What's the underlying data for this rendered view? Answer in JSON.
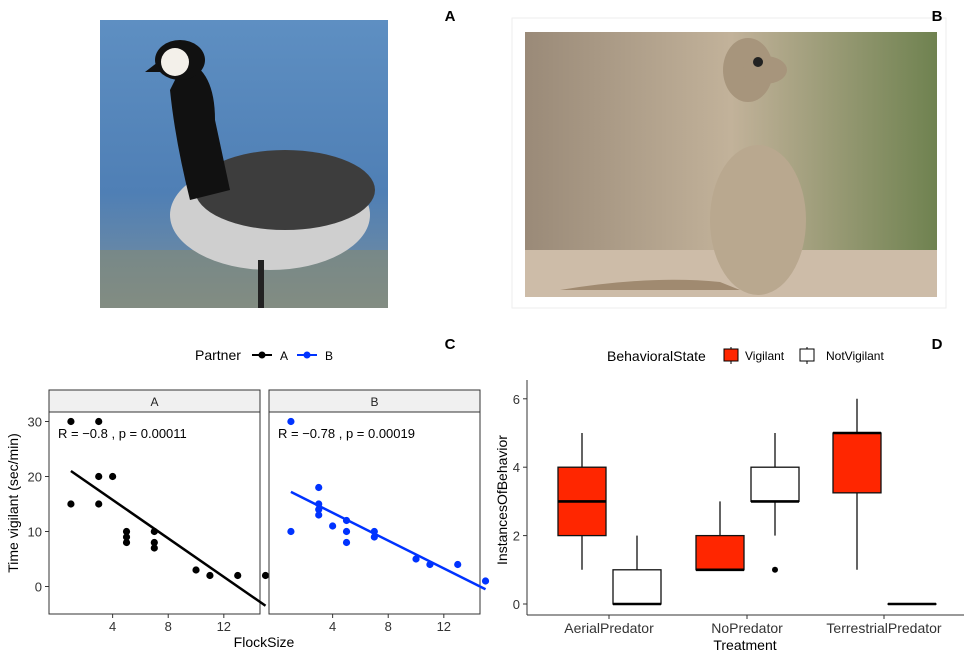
{
  "panel_labels": [
    "A",
    "B",
    "C",
    "D"
  ],
  "photos": {
    "a": "barnacle-goose-photo",
    "b": "meerkat-photo"
  },
  "colors": {
    "partner_a": "#000000",
    "partner_b": "#0033ff",
    "vigilant": "#ff2600",
    "not_vigilant": "#ffffff",
    "strip": "#f0f0f0"
  },
  "chart_data": [
    {
      "type": "scatter",
      "title": "",
      "xlabel": "FlockSize",
      "ylabel": "Time vigilant (sec/min)",
      "xlim": [
        0,
        16
      ],
      "ylim": [
        -5,
        32
      ],
      "xticks": [
        "4",
        "8",
        "12"
      ],
      "xtick_values": [
        4,
        8,
        12
      ],
      "yticks": [
        "0",
        "10",
        "20",
        "30"
      ],
      "ytick_values": [
        0,
        10,
        20,
        30
      ],
      "legend": {
        "title": "Partner",
        "entries": [
          "A",
          "B"
        ],
        "placement": "top"
      },
      "series": [
        {
          "name": "A",
          "facet": "A",
          "annotation": {
            "r": "R = −0.8 , ",
            "p": "p = 0.00011"
          },
          "points": [
            [
              1,
              30
            ],
            [
              3,
              30
            ],
            [
              1,
              15
            ],
            [
              3,
              20
            ],
            [
              3,
              15
            ],
            [
              4,
              20
            ],
            [
              5,
              10
            ],
            [
              5,
              9
            ],
            [
              5,
              8
            ],
            [
              7,
              10
            ],
            [
              7,
              8
            ],
            [
              7,
              7
            ],
            [
              10,
              3
            ],
            [
              11,
              2
            ],
            [
              13,
              2
            ],
            [
              15,
              2
            ]
          ],
          "fit": [
            [
              1,
              21
            ],
            [
              15,
              -3.5
            ]
          ]
        },
        {
          "name": "B",
          "facet": "B",
          "annotation": {
            "r": "R = −0.78 , ",
            "p": "p = 0.00019"
          },
          "points": [
            [
              1,
              30
            ],
            [
              1,
              10
            ],
            [
              3,
              18
            ],
            [
              3,
              15
            ],
            [
              3,
              14
            ],
            [
              3,
              13
            ],
            [
              4,
              11
            ],
            [
              5,
              12
            ],
            [
              5,
              10
            ],
            [
              5,
              8
            ],
            [
              7,
              10
            ],
            [
              7,
              9
            ],
            [
              10,
              5
            ],
            [
              11,
              4
            ],
            [
              13,
              4
            ],
            [
              15,
              1
            ]
          ],
          "fit": [
            [
              1,
              17.2
            ],
            [
              15,
              -0.5
            ]
          ]
        }
      ]
    },
    {
      "type": "box",
      "xlabel": "Treatment",
      "ylabel": "InstancesOfBehavior",
      "ylim": [
        0,
        6
      ],
      "yticks": [
        "0",
        "2",
        "4",
        "6"
      ],
      "ytick_values": [
        0,
        2,
        4,
        6
      ],
      "categories": [
        "AerialPredator",
        "NoPredator",
        "TerrestrialPredator"
      ],
      "legend": {
        "title": "BehavioralState",
        "entries": [
          "Vigilant",
          "NotVigilant"
        ],
        "placement": "top"
      },
      "series": [
        {
          "name": "Vigilant",
          "boxes": [
            {
              "min": 1,
              "q1": 2,
              "median": 3,
              "q3": 4,
              "max": 5,
              "outliers": []
            },
            {
              "min": 1,
              "q1": 1,
              "median": 1,
              "q3": 2,
              "max": 3,
              "outliers": []
            },
            {
              "min": 1,
              "q1": 3.25,
              "median": 5,
              "q3": 5,
              "max": 6,
              "outliers": []
            }
          ]
        },
        {
          "name": "NotVigilant",
          "boxes": [
            {
              "min": 0,
              "q1": 0,
              "median": 0,
              "q3": 1,
              "max": 2,
              "outliers": []
            },
            {
              "min": 2,
              "q1": 3,
              "median": 3,
              "q3": 4,
              "max": 5,
              "outliers": [
                1
              ]
            },
            {
              "min": 0,
              "q1": 0,
              "median": 0,
              "q3": 0,
              "max": 0,
              "outliers": []
            }
          ]
        }
      ]
    }
  ]
}
